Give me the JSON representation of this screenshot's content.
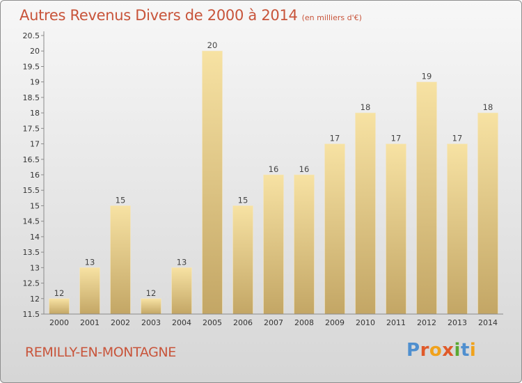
{
  "header": {
    "title": "Autres Revenus Divers de 2000 à 2014",
    "unit": "(en milliers d'€)"
  },
  "footer": {
    "commune": "REMILLY-EN-MONTAGNE",
    "logo": "Proxiti"
  },
  "colors": {
    "title": "#c8543a",
    "bar_light": "#f7e2a3",
    "bar_dark": "#c3a665",
    "logo_letters": [
      "#4f8fcf",
      "#e05a2a",
      "#f0a21c",
      "#e05a2a",
      "#5aa832",
      "#4f8fcf",
      "#f0a21c"
    ]
  },
  "chart_data": {
    "type": "bar",
    "title": "Autres Revenus Divers de 2000 à 2014",
    "subtitle": "(en milliers d'€)",
    "xlabel": "",
    "ylabel": "",
    "categories": [
      "2000",
      "2001",
      "2002",
      "2003",
      "2004",
      "2005",
      "2006",
      "2007",
      "2008",
      "2009",
      "2010",
      "2011",
      "2012",
      "2013",
      "2014"
    ],
    "values": [
      12,
      13,
      15,
      12,
      13,
      20,
      15,
      16,
      16,
      17,
      18,
      17,
      19,
      17,
      18
    ],
    "ylim": [
      11.5,
      20.5
    ],
    "yticks": [
      "11.5",
      "12",
      "12.5",
      "13",
      "13.5",
      "14",
      "14.5",
      "15",
      "15.5",
      "16",
      "16.5",
      "17",
      "17.5",
      "18",
      "18.5",
      "19",
      "19.5",
      "20",
      "20.5"
    ],
    "grid": false,
    "legend": "none",
    "data_labels": true
  }
}
